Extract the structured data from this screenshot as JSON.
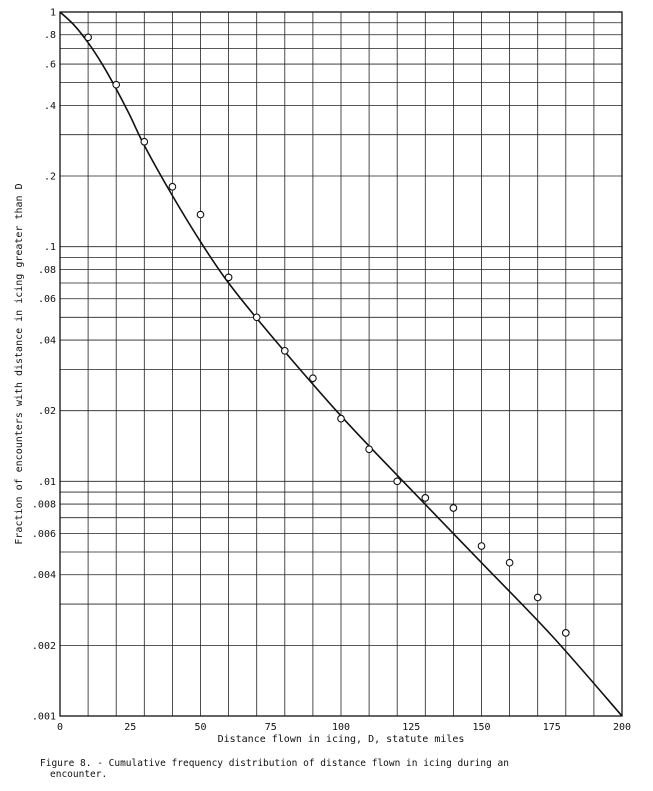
{
  "chart_data": {
    "type": "scatter",
    "xlabel": "Distance flown in icing, D, statute miles",
    "ylabel": "Fraction of encounters with distance in icing greater than  D",
    "xlim": [
      0,
      200
    ],
    "ylim": [
      0.001,
      1
    ],
    "y_scale": "log",
    "grid": true,
    "x_ticks": [
      {
        "value": 0,
        "label": "0"
      },
      {
        "value": 25,
        "label": "25"
      },
      {
        "value": 50,
        "label": "50"
      },
      {
        "value": 75,
        "label": "75"
      },
      {
        "value": 100,
        "label": "100"
      },
      {
        "value": 125,
        "label": "125"
      },
      {
        "value": 150,
        "label": "150"
      },
      {
        "value": 175,
        "label": "175"
      },
      {
        "value": 200,
        "label": "200"
      }
    ],
    "y_ticks": [
      {
        "value": 1,
        "label": "1"
      },
      {
        "value": 0.8,
        "label": ".8"
      },
      {
        "value": 0.6,
        "label": ".6"
      },
      {
        "value": 0.4,
        "label": ".4"
      },
      {
        "value": 0.2,
        "label": ".2"
      },
      {
        "value": 0.1,
        "label": ".1"
      },
      {
        "value": 0.08,
        "label": ".08"
      },
      {
        "value": 0.06,
        "label": ".06"
      },
      {
        "value": 0.04,
        "label": ".04"
      },
      {
        "value": 0.02,
        "label": ".02"
      },
      {
        "value": 0.01,
        "label": ".01"
      },
      {
        "value": 0.008,
        "label": ".008"
      },
      {
        "value": 0.006,
        "label": ".006"
      },
      {
        "value": 0.004,
        "label": ".004"
      },
      {
        "value": 0.002,
        "label": ".002"
      },
      {
        "value": 0.001,
        "label": ".001"
      }
    ],
    "y_gridlines": [
      1,
      0.9,
      0.8,
      0.7,
      0.6,
      0.5,
      0.4,
      0.3,
      0.2,
      0.1,
      0.09,
      0.08,
      0.07,
      0.06,
      0.05,
      0.04,
      0.03,
      0.02,
      0.01,
      0.009,
      0.008,
      0.007,
      0.006,
      0.005,
      0.004,
      0.003,
      0.002,
      0.001
    ],
    "x_gridlines": [
      0,
      10,
      20,
      30,
      40,
      50,
      60,
      70,
      80,
      90,
      100,
      110,
      120,
      130,
      140,
      150,
      160,
      170,
      180,
      190,
      200
    ],
    "observed_points": {
      "x": [
        10,
        20,
        30,
        40,
        50,
        60,
        70,
        80,
        90,
        100,
        110,
        120,
        130,
        140,
        150,
        160,
        170,
        180
      ],
      "y": [
        0.78,
        0.49,
        0.28,
        0.18,
        0.137,
        0.074,
        0.05,
        0.036,
        0.0275,
        0.0185,
        0.0137,
        0.01,
        0.0085,
        0.0077,
        0.0053,
        0.0045,
        0.0032,
        0.00226
      ]
    },
    "fitted_curve": {
      "x": [
        0,
        5,
        10,
        15,
        20,
        25,
        30,
        40,
        50,
        60,
        75,
        100,
        125,
        150,
        175,
        200
      ],
      "y": [
        1.0,
        0.88,
        0.74,
        0.6,
        0.47,
        0.36,
        0.27,
        0.165,
        0.105,
        0.07,
        0.042,
        0.019,
        0.0092,
        0.0045,
        0.0022,
        0.001
      ]
    }
  },
  "caption": {
    "line1": "Figure 8. - Cumulative frequency distribution of distance flown in icing during an",
    "line2": "encounter."
  }
}
